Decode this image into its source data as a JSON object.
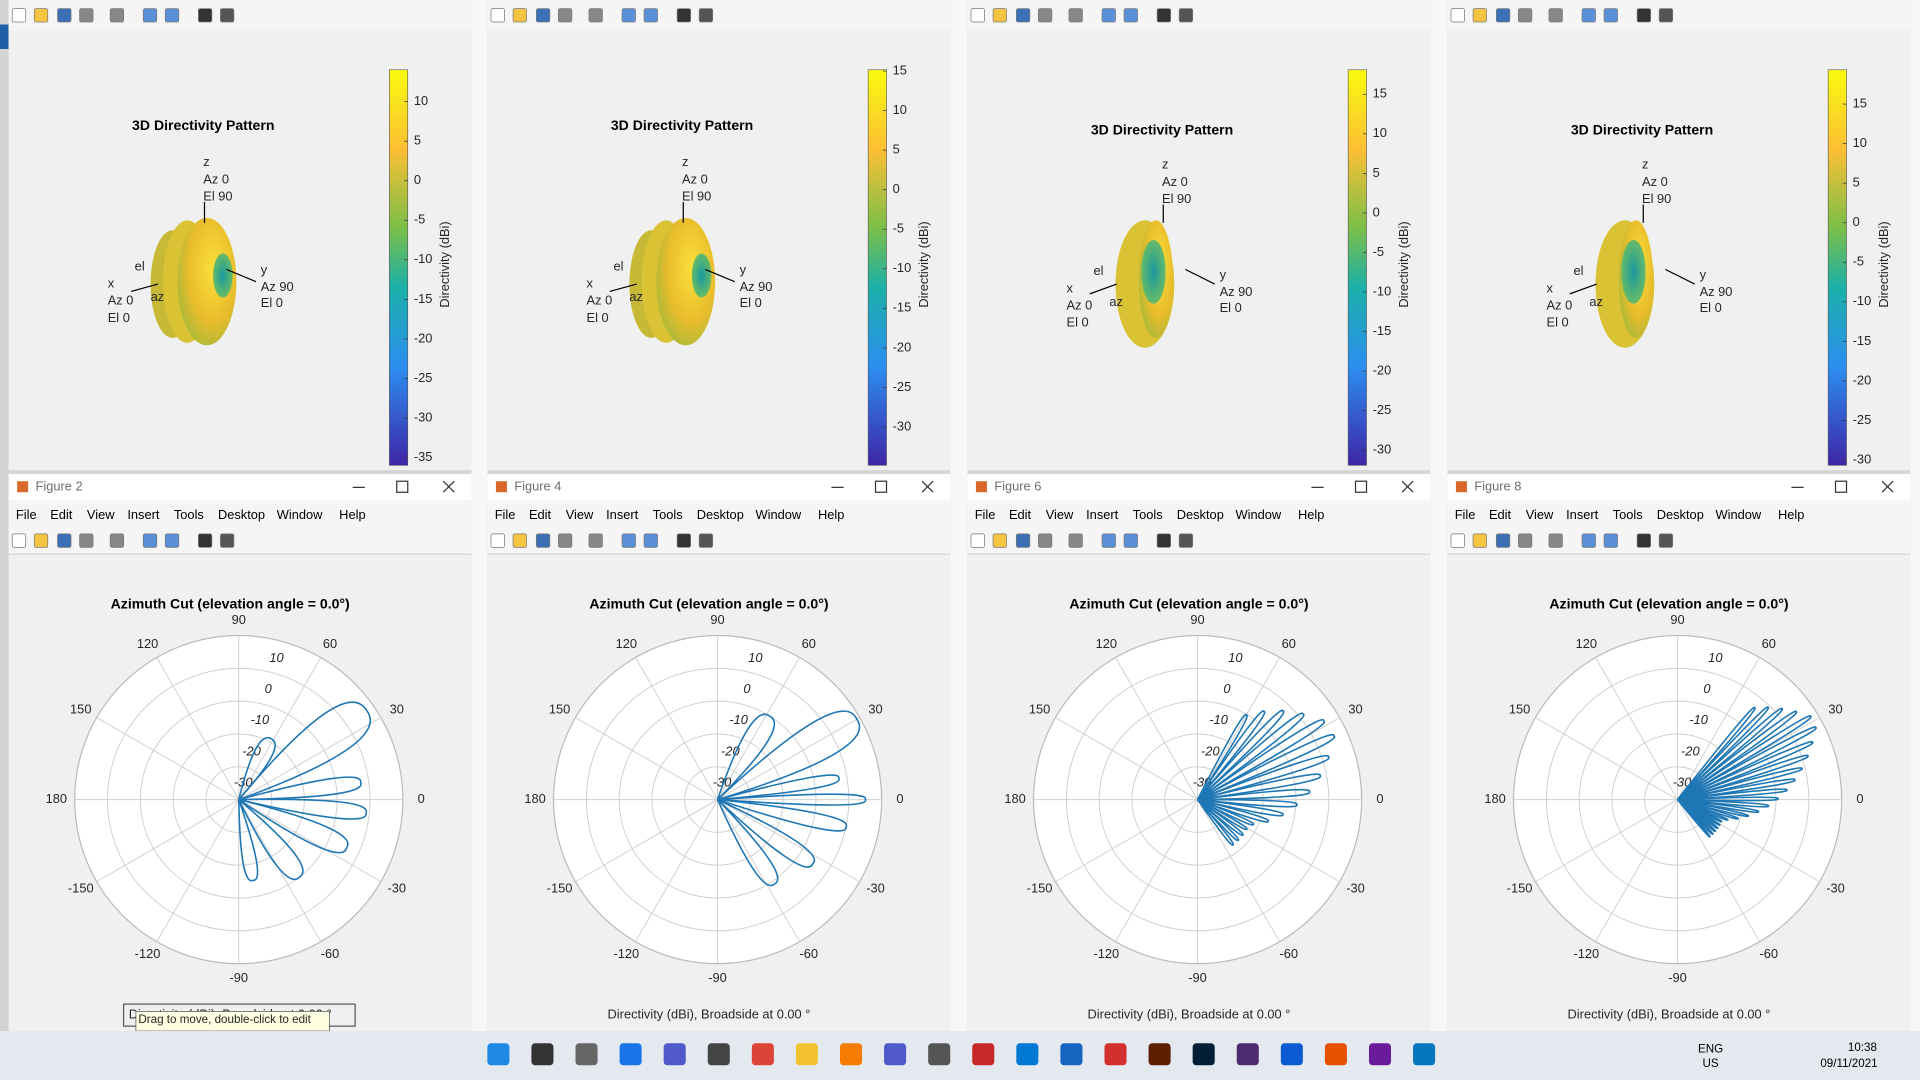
{
  "shared": {
    "plot3d_title": "3D Directivity Pattern",
    "colorbar_label": "Directivity (dBi)",
    "axis_labels": [
      "z",
      "Az 0",
      "El 90",
      "x",
      "Az 0",
      "El 0",
      "y",
      "Az 90",
      "El 0",
      "el",
      "az"
    ],
    "menu": [
      "File",
      "Edit",
      "View",
      "Insert",
      "Tools",
      "Desktop",
      "Window",
      "Help"
    ],
    "polar_title": "Azimuth Cut (elevation angle = 0.0°)",
    "angle_labels": [
      0,
      30,
      60,
      90,
      120,
      150,
      180,
      -150,
      -120,
      -90,
      -60,
      -30
    ],
    "radial_labels": [
      10,
      0,
      -10,
      -20,
      -30
    ],
    "caption": "Directivity (dBi), Broadside at 0.00 °",
    "tooltip": "Drag to move, double-click to edit"
  },
  "figures": [
    {
      "window_title": "Figure 2",
      "colorbar_ticks": [
        10,
        5,
        0,
        -5,
        -10,
        -15,
        -20,
        -25,
        -30,
        -35
      ]
    },
    {
      "window_title": "Figure 4",
      "colorbar_ticks": [
        15,
        10,
        5,
        0,
        -5,
        -10,
        -15,
        -20,
        -25,
        -30
      ]
    },
    {
      "window_title": "Figure 6",
      "colorbar_ticks": [
        15,
        10,
        5,
        0,
        -5,
        -10,
        -15,
        -20,
        -25,
        -30
      ]
    },
    {
      "window_title": "Figure 8",
      "colorbar_ticks": [
        15,
        10,
        5,
        0,
        -5,
        -10,
        -15,
        -20,
        -25,
        -30
      ]
    }
  ],
  "taskbar": {
    "language": "ENG",
    "region": "US",
    "time": "10:38",
    "date": "09/11/2021"
  }
}
